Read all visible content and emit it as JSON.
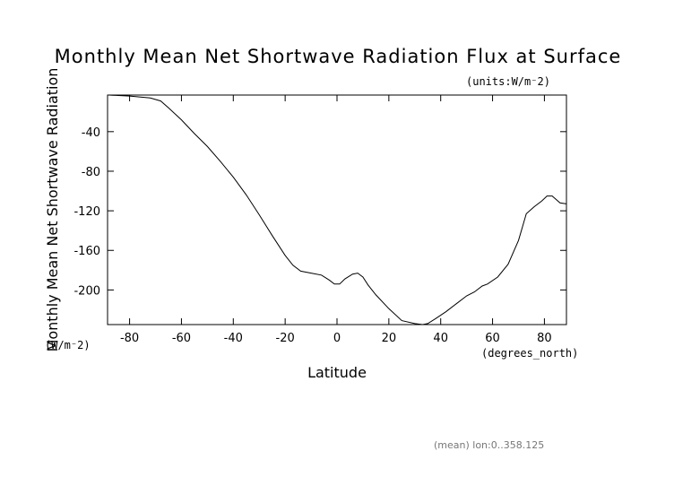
{
  "chart_data": {
    "type": "line",
    "title": "Monthly Mean Net Shortwave Radiation Flux at Surface",
    "units_note": "(units:W/m⁻2)",
    "ylabel": "Monthly Mean Net Shortwave Radiation",
    "ylabel_units": "(W/m⁻2)",
    "xlabel": "Latitude",
    "xlabel_units": "(degrees_north)",
    "footnote": "(mean) lon:0..358.125",
    "xlim": [
      -88.5,
      88.5
    ],
    "ylim": [
      -235,
      -3
    ],
    "xticks": [
      -80,
      -60,
      -40,
      -20,
      0,
      20,
      40,
      60,
      80
    ],
    "yticks": [
      -40,
      -80,
      -120,
      -160,
      -200
    ],
    "grid": false,
    "series": [
      {
        "x": [
          -88,
          -80,
          -72,
          -68,
          -65,
          -60,
          -55,
          -50,
          -45,
          -40,
          -35,
          -30,
          -25,
          -20,
          -17,
          -14,
          -10,
          -6,
          -3,
          -1,
          1,
          3,
          6,
          8,
          10,
          12,
          15,
          20,
          25,
          30,
          33,
          35,
          38,
          42,
          46,
          50,
          53,
          56,
          58,
          62,
          66,
          70,
          73,
          76,
          79,
          81,
          83,
          86,
          88.5
        ],
        "y": [
          -3,
          -4,
          -6,
          -9,
          -16,
          -28,
          -42,
          -55,
          -70,
          -86,
          -104,
          -124,
          -145,
          -165,
          -175,
          -181,
          -183,
          -185,
          -190,
          -194,
          -194,
          -189,
          -184,
          -183,
          -187,
          -195,
          -205,
          -219,
          -231,
          -234,
          -235,
          -234,
          -229,
          -222,
          -214,
          -206,
          -202,
          -196,
          -194,
          -187,
          -174,
          -150,
          -123,
          -116,
          -110,
          -105,
          -105,
          -112,
          -113
        ]
      }
    ]
  }
}
